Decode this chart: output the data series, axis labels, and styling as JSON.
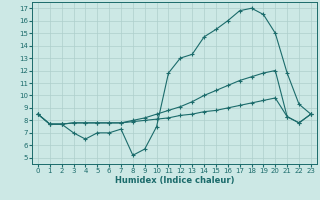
{
  "xlabel": "Humidex (Indice chaleur)",
  "background_color": "#cce8e5",
  "grid_color": "#aecfcc",
  "line_color": "#1b6b6b",
  "xlim": [
    -0.5,
    23.5
  ],
  "ylim": [
    4.5,
    17.5
  ],
  "xticks": [
    0,
    1,
    2,
    3,
    4,
    5,
    6,
    7,
    8,
    9,
    10,
    11,
    12,
    13,
    14,
    15,
    16,
    17,
    18,
    19,
    20,
    21,
    22,
    23
  ],
  "yticks": [
    5,
    6,
    7,
    8,
    9,
    10,
    11,
    12,
    13,
    14,
    15,
    16,
    17
  ],
  "line1_y": [
    8.5,
    7.7,
    7.7,
    7.0,
    6.5,
    7.0,
    7.0,
    7.3,
    5.2,
    5.7,
    7.5,
    11.8,
    13.0,
    13.3,
    14.7,
    15.3,
    16.0,
    16.8,
    17.0,
    16.5,
    15.0,
    11.8,
    9.3,
    8.5
  ],
  "line2_y": [
    8.5,
    7.7,
    7.7,
    7.8,
    7.8,
    7.8,
    7.8,
    7.8,
    8.0,
    8.2,
    8.5,
    8.8,
    9.1,
    9.5,
    10.0,
    10.4,
    10.8,
    11.2,
    11.5,
    11.8,
    12.0,
    8.3,
    7.8,
    8.5
  ],
  "line3_y": [
    8.5,
    7.7,
    7.7,
    7.8,
    7.8,
    7.8,
    7.8,
    7.8,
    7.9,
    8.0,
    8.1,
    8.2,
    8.4,
    8.5,
    8.7,
    8.8,
    9.0,
    9.2,
    9.4,
    9.6,
    9.8,
    8.3,
    7.8,
    8.5
  ]
}
